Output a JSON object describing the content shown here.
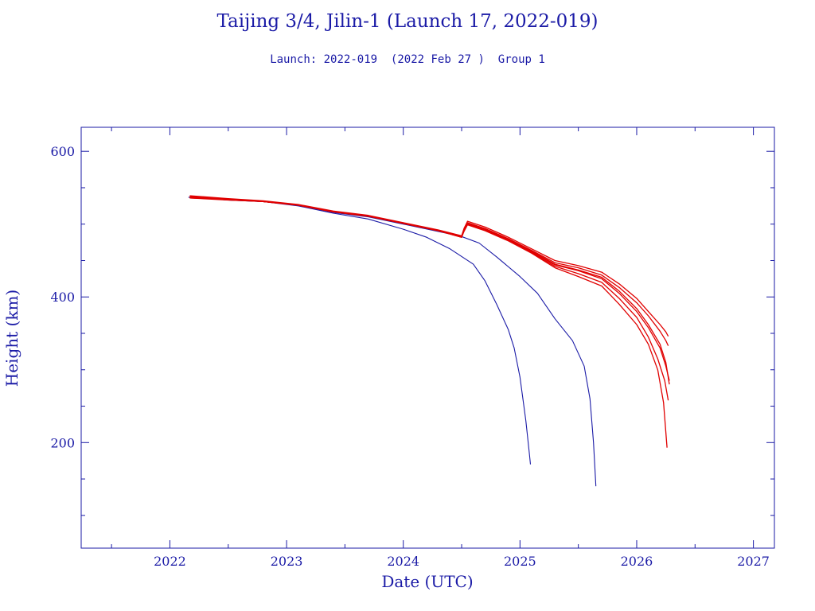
{
  "chart_data": {
    "type": "line",
    "title": "Taijing 3/4, Jilin-1 (Launch 17, 2022-019)",
    "subtitle": "Launch: 2022-019  (2022 Feb 27 )  Group 1",
    "xlabel": "Date (UTC)",
    "ylabel": "Height (km)",
    "xlim": [
      2021.24,
      2027.18
    ],
    "ylim": [
      55,
      633
    ],
    "xticks": [
      2022,
      2023,
      2024,
      2025,
      2026,
      2027
    ],
    "yticks": [
      200,
      400,
      600
    ],
    "grid": false,
    "colors": {
      "axis": "#1a1aa6",
      "decayed": "#1a1aa6",
      "active": "#e00000"
    },
    "series": [
      {
        "color": "#1a1aa6",
        "x": [
          2022.16,
          2022.5,
          2022.8,
          2023.1,
          2023.4,
          2023.7,
          2024.0,
          2024.2,
          2024.4,
          2024.6,
          2024.7,
          2024.8,
          2024.9,
          2024.95,
          2025.0,
          2025.05,
          2025.08,
          2025.09
        ],
        "y": [
          537,
          533,
          531,
          525,
          515,
          507,
          493,
          482,
          466,
          445,
          422,
          390,
          355,
          330,
          290,
          230,
          185,
          170
        ]
      },
      {
        "color": "#1a1aa6",
        "x": [
          2022.16,
          2022.5,
          2022.8,
          2023.1,
          2023.4,
          2023.7,
          2024.0,
          2024.3,
          2024.5,
          2024.65,
          2024.8,
          2025.0,
          2025.15,
          2025.3,
          2025.45,
          2025.55,
          2025.6,
          2025.63,
          2025.65
        ],
        "y": [
          537,
          533,
          531,
          526,
          516,
          510,
          500,
          490,
          483,
          474,
          455,
          428,
          405,
          370,
          340,
          305,
          260,
          200,
          140
        ]
      },
      {
        "color": "#e00000",
        "x": [
          2022.17,
          2022.5,
          2022.8,
          2023.1,
          2023.4,
          2023.7,
          2024.0,
          2024.3,
          2024.5,
          2024.52,
          2024.55,
          2024.7,
          2024.9,
          2025.1,
          2025.3,
          2025.5,
          2025.7,
          2025.85,
          2026.0,
          2026.1,
          2026.2,
          2026.25,
          2026.27
        ],
        "y": [
          539,
          535,
          532,
          527,
          518,
          512,
          502,
          492,
          484,
          494,
          504,
          496,
          482,
          466,
          450,
          443,
          434,
          418,
          398,
          380,
          362,
          352,
          346
        ]
      },
      {
        "color": "#e00000",
        "x": [
          2022.17,
          2022.5,
          2022.8,
          2023.1,
          2023.4,
          2023.7,
          2024.0,
          2024.3,
          2024.5,
          2024.52,
          2024.55,
          2024.7,
          2024.9,
          2025.1,
          2025.3,
          2025.5,
          2025.7,
          2025.85,
          2026.0,
          2026.1,
          2026.2,
          2026.25,
          2026.27
        ],
        "y": [
          537,
          534,
          531,
          526,
          517,
          511,
          501,
          491,
          483,
          493,
          502,
          494,
          480,
          464,
          447,
          440,
          430,
          413,
          392,
          374,
          353,
          340,
          333
        ]
      },
      {
        "color": "#e00000",
        "x": [
          2022.17,
          2022.5,
          2022.8,
          2023.1,
          2023.4,
          2023.7,
          2024.0,
          2024.3,
          2024.5,
          2024.52,
          2024.55,
          2024.7,
          2024.9,
          2025.1,
          2025.3,
          2025.5,
          2025.7,
          2025.85,
          2026.0,
          2026.1,
          2026.2,
          2026.25,
          2026.28
        ],
        "y": [
          536,
          534,
          531,
          526,
          517,
          511,
          501,
          491,
          482,
          492,
          500,
          492,
          478,
          462,
          444,
          436,
          425,
          405,
          380,
          358,
          330,
          305,
          285
        ]
      },
      {
        "color": "#e00000",
        "x": [
          2022.17,
          2022.5,
          2022.8,
          2023.1,
          2023.4,
          2023.7,
          2024.0,
          2024.3,
          2024.5,
          2024.52,
          2024.55,
          2024.7,
          2024.9,
          2025.1,
          2025.3,
          2025.5,
          2025.7,
          2025.85,
          2026.0,
          2026.1,
          2026.2,
          2026.25,
          2026.28
        ],
        "y": [
          538,
          534,
          531,
          526,
          517,
          511,
          501,
          491,
          483,
          492,
          501,
          493,
          479,
          463,
          445,
          437,
          427,
          408,
          384,
          362,
          335,
          310,
          280
        ]
      },
      {
        "color": "#e00000",
        "x": [
          2022.17,
          2022.5,
          2022.8,
          2023.1,
          2023.4,
          2023.7,
          2024.0,
          2024.3,
          2024.5,
          2024.52,
          2024.55,
          2024.7,
          2024.9,
          2025.1,
          2025.3,
          2025.5,
          2025.7,
          2025.85,
          2026.0,
          2026.1,
          2026.18,
          2026.24,
          2026.27
        ],
        "y": [
          537,
          534,
          531,
          526,
          517,
          511,
          501,
          491,
          482,
          491,
          500,
          492,
          478,
          461,
          442,
          432,
          420,
          398,
          372,
          345,
          315,
          285,
          258
        ]
      },
      {
        "color": "#e00000",
        "x": [
          2022.17,
          2022.5,
          2022.8,
          2023.1,
          2023.4,
          2023.7,
          2024.0,
          2024.3,
          2024.5,
          2024.52,
          2024.55,
          2024.7,
          2024.9,
          2025.1,
          2025.3,
          2025.5,
          2025.7,
          2025.85,
          2026.0,
          2026.1,
          2026.18,
          2026.23,
          2026.26
        ],
        "y": [
          536,
          533,
          531,
          526,
          517,
          511,
          501,
          491,
          482,
          490,
          499,
          491,
          477,
          460,
          440,
          428,
          415,
          390,
          362,
          335,
          300,
          255,
          193
        ]
      }
    ]
  }
}
